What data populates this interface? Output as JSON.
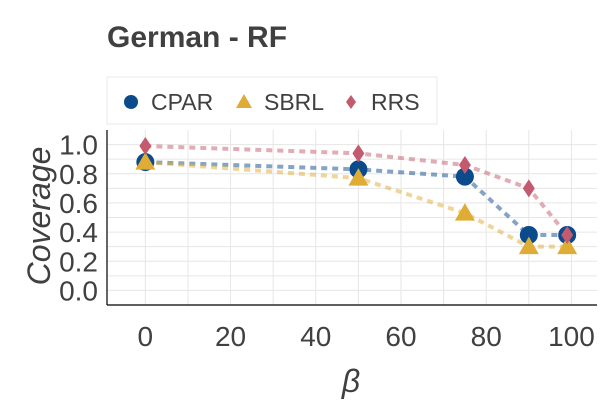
{
  "chart_data": {
    "type": "line",
    "title": "German - RF",
    "xlabel": "β",
    "ylabel": "Coverage",
    "xlim": [
      -9,
      106
    ],
    "ylim": [
      -0.1,
      1.1
    ],
    "x_ticks": [
      0,
      20,
      40,
      60,
      80,
      100
    ],
    "y_ticks": [
      0.0,
      0.2,
      0.4,
      0.6,
      0.8,
      1.0
    ],
    "x_tick_labels": [
      "0",
      "20",
      "40",
      "60",
      "80",
      "100"
    ],
    "y_tick_labels": [
      "0.0",
      "0.2",
      "0.4",
      "0.6",
      "0.8",
      "1.0"
    ],
    "grid": true,
    "legend_position": "top-left",
    "series": [
      {
        "name": "CPAR",
        "marker": "circle",
        "color": "#0b4a8b",
        "x": [
          0,
          50,
          75,
          90,
          99
        ],
        "y": [
          0.88,
          0.83,
          0.78,
          0.38,
          0.38
        ]
      },
      {
        "name": "SBRL",
        "marker": "triangle",
        "color": "#dfac35",
        "x": [
          0,
          50,
          75,
          90,
          99
        ],
        "y": [
          0.88,
          0.77,
          0.53,
          0.3,
          0.3
        ]
      },
      {
        "name": "RRS",
        "marker": "diamond",
        "color": "#c45a6e",
        "x": [
          0,
          50,
          75,
          90,
          99
        ],
        "y": [
          0.99,
          0.94,
          0.86,
          0.7,
          0.38
        ]
      }
    ]
  }
}
